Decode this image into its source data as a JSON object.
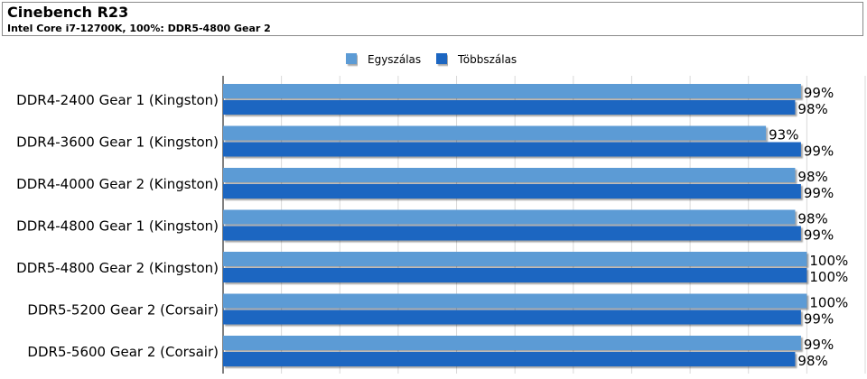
{
  "header": {
    "title": "Cinebench R23",
    "subtitle": "Intel Core i7-12700K, 100%: DDR5-4800 Gear 2"
  },
  "chart_data": {
    "type": "bar",
    "orientation": "horizontal",
    "categories": [
      "DDR4-2400 Gear 1 (Kingston)",
      "DDR4-3600 Gear 1 (Kingston)",
      "DDR4-4000 Gear 2 (Kingston)",
      "DDR4-4800 Gear 1 (Kingston)",
      "DDR5-4800 Gear 2 (Kingston)",
      "DDR5-5200 Gear 2 (Corsair)",
      "DDR5-5600 Gear 2 (Corsair)"
    ],
    "series": [
      {
        "name": "Egyszálas",
        "color": "#5b9bd5",
        "values": [
          99,
          93,
          98,
          98,
          100,
          100,
          99
        ]
      },
      {
        "name": "Többszálas",
        "color": "#1f66c1",
        "values": [
          98,
          99,
          99,
          99,
          100,
          99,
          98
        ]
      }
    ],
    "value_suffix": "%",
    "xlim": [
      0,
      110
    ],
    "grid": true,
    "legend_position": "top-center"
  }
}
